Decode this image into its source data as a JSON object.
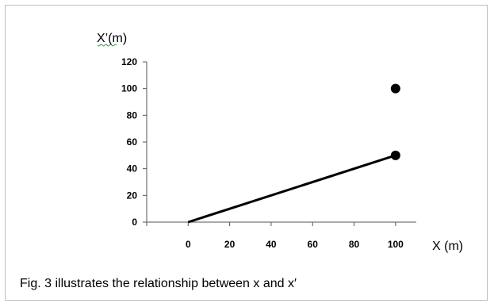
{
  "caption": "Fig. 3 illustrates the relationship between x and x′",
  "chart_data": {
    "type": "scatter",
    "title": "",
    "xlabel": "X (m)",
    "ylabel": "X’(m)",
    "xlim": [
      -20,
      110
    ],
    "ylim": [
      0,
      120
    ],
    "x_ticks": [
      0,
      20,
      40,
      60,
      80,
      100
    ],
    "y_ticks": [
      0,
      20,
      40,
      60,
      80,
      100,
      120
    ],
    "grid": false,
    "legend": "none",
    "line": {
      "x": [
        0,
        100
      ],
      "y": [
        0,
        50
      ]
    },
    "points": [
      {
        "x": 100,
        "y": 100
      },
      {
        "x": 100,
        "y": 50
      }
    ],
    "color": "#000000"
  }
}
